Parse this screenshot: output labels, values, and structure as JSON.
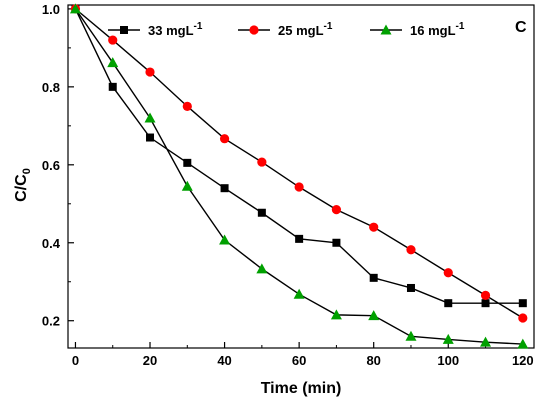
{
  "chart_data": {
    "type": "line",
    "panel_label": "C",
    "xlabel": "Time (min)",
    "ylabel": {
      "main": "C/C",
      "subscript": "0"
    },
    "xlim": [
      -2,
      123
    ],
    "ylim": [
      0.13,
      1.01
    ],
    "xticks": [
      0,
      20,
      40,
      60,
      80,
      100,
      120
    ],
    "xtick_labels": [
      "0",
      "20",
      "40",
      "60",
      "80",
      "100",
      "120"
    ],
    "yticks": [
      0.2,
      0.4,
      0.6,
      0.8,
      1.0
    ],
    "ytick_labels": [
      "0.2",
      "0.4",
      "0.6",
      "0.8",
      "1.0"
    ],
    "x": [
      0,
      10,
      20,
      30,
      40,
      50,
      60,
      70,
      80,
      90,
      100,
      110,
      120
    ],
    "legend_position": "top",
    "series": [
      {
        "name": "33 mgL",
        "name_sup": "-1",
        "color": "#000000",
        "marker": "square",
        "values": [
          1.0,
          0.8,
          0.67,
          0.605,
          0.54,
          0.477,
          0.41,
          0.4,
          0.31,
          0.284,
          0.245,
          0.245,
          0.245
        ]
      },
      {
        "name": "25 mgL",
        "name_sup": "-1",
        "color": "#ff0000",
        "marker": "circle",
        "values": [
          1.0,
          0.92,
          0.838,
          0.75,
          0.667,
          0.607,
          0.543,
          0.485,
          0.44,
          0.382,
          0.323,
          0.265,
          0.207
        ]
      },
      {
        "name": "16 mgL",
        "name_sup": "-1",
        "color": "#00a000",
        "marker": "triangle",
        "values": [
          1.0,
          0.862,
          0.72,
          0.545,
          0.407,
          0.333,
          0.268,
          0.215,
          0.213,
          0.16,
          0.152,
          0.145,
          0.14
        ]
      }
    ]
  }
}
